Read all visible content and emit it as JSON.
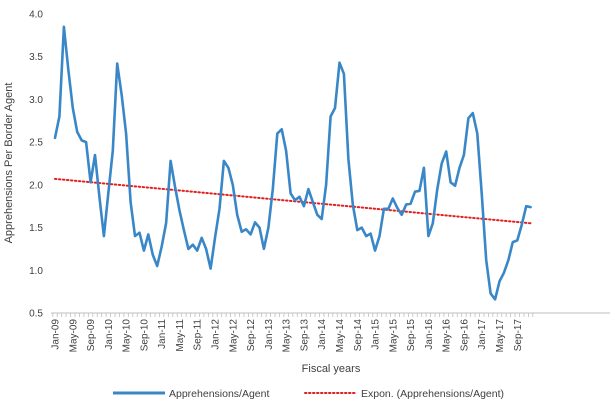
{
  "chart_data": {
    "type": "line",
    "title": "",
    "xlabel": "Fiscal years",
    "ylabel": "Apprehensions Per Border Agent",
    "ylim": [
      0.5,
      4.0
    ],
    "yticks": [
      "0.5",
      "1.0",
      "1.5",
      "2.0",
      "2.5",
      "3.0",
      "3.5",
      "4.0"
    ],
    "x_start": "Jan-09",
    "x_labels": [
      "Jan-09",
      "May-09",
      "Sep-09",
      "Jan-10",
      "May-10",
      "Sep-10",
      "Jan-11",
      "May-11",
      "Sep-11",
      "Jan-12",
      "May-12",
      "Sep-12",
      "Jan-13",
      "May-13",
      "Sep-13",
      "Jan-14",
      "May-14",
      "Sep-14",
      "Jan-15",
      "May-15",
      "Sep-15",
      "Jan-16",
      "May-16",
      "Sep-16",
      "Jan-17",
      "May-17",
      "Sep-17"
    ],
    "series": [
      {
        "name": "Apprehensions/Agent",
        "color": "#3a87c8",
        "style": "solid",
        "values": [
          2.55,
          2.8,
          3.85,
          3.35,
          2.9,
          2.62,
          2.52,
          2.5,
          2.03,
          2.35,
          1.85,
          1.4,
          1.9,
          2.4,
          3.42,
          3.05,
          2.6,
          1.8,
          1.4,
          1.44,
          1.23,
          1.42,
          1.18,
          1.05,
          1.28,
          1.55,
          2.28,
          1.98,
          1.7,
          1.47,
          1.25,
          1.3,
          1.23,
          1.38,
          1.25,
          1.02,
          1.38,
          1.72,
          2.28,
          2.2,
          2.0,
          1.65,
          1.45,
          1.48,
          1.42,
          1.56,
          1.5,
          1.25,
          1.5,
          1.95,
          2.6,
          2.65,
          2.4,
          1.9,
          1.82,
          1.86,
          1.75,
          1.95,
          1.8,
          1.65,
          1.6,
          2.0,
          2.8,
          2.9,
          3.43,
          3.3,
          2.3,
          1.77,
          1.47,
          1.5,
          1.4,
          1.43,
          1.23,
          1.4,
          1.72,
          1.72,
          1.84,
          1.73,
          1.65,
          1.77,
          1.78,
          1.92,
          1.93,
          2.2,
          1.4,
          1.55,
          1.95,
          2.25,
          2.39,
          2.03,
          1.99,
          2.2,
          2.35,
          2.78,
          2.84,
          2.6,
          1.9,
          1.12,
          0.73,
          0.66,
          0.87,
          0.97,
          1.12,
          1.33,
          1.35,
          1.53,
          1.75,
          1.74
        ]
      },
      {
        "name": "Expon. (Apprehensions/Agent)",
        "color": "#e02020",
        "style": "dotted",
        "trend": [
          2.07,
          1.55
        ]
      }
    ],
    "legend_position": "bottom",
    "grid": false
  }
}
